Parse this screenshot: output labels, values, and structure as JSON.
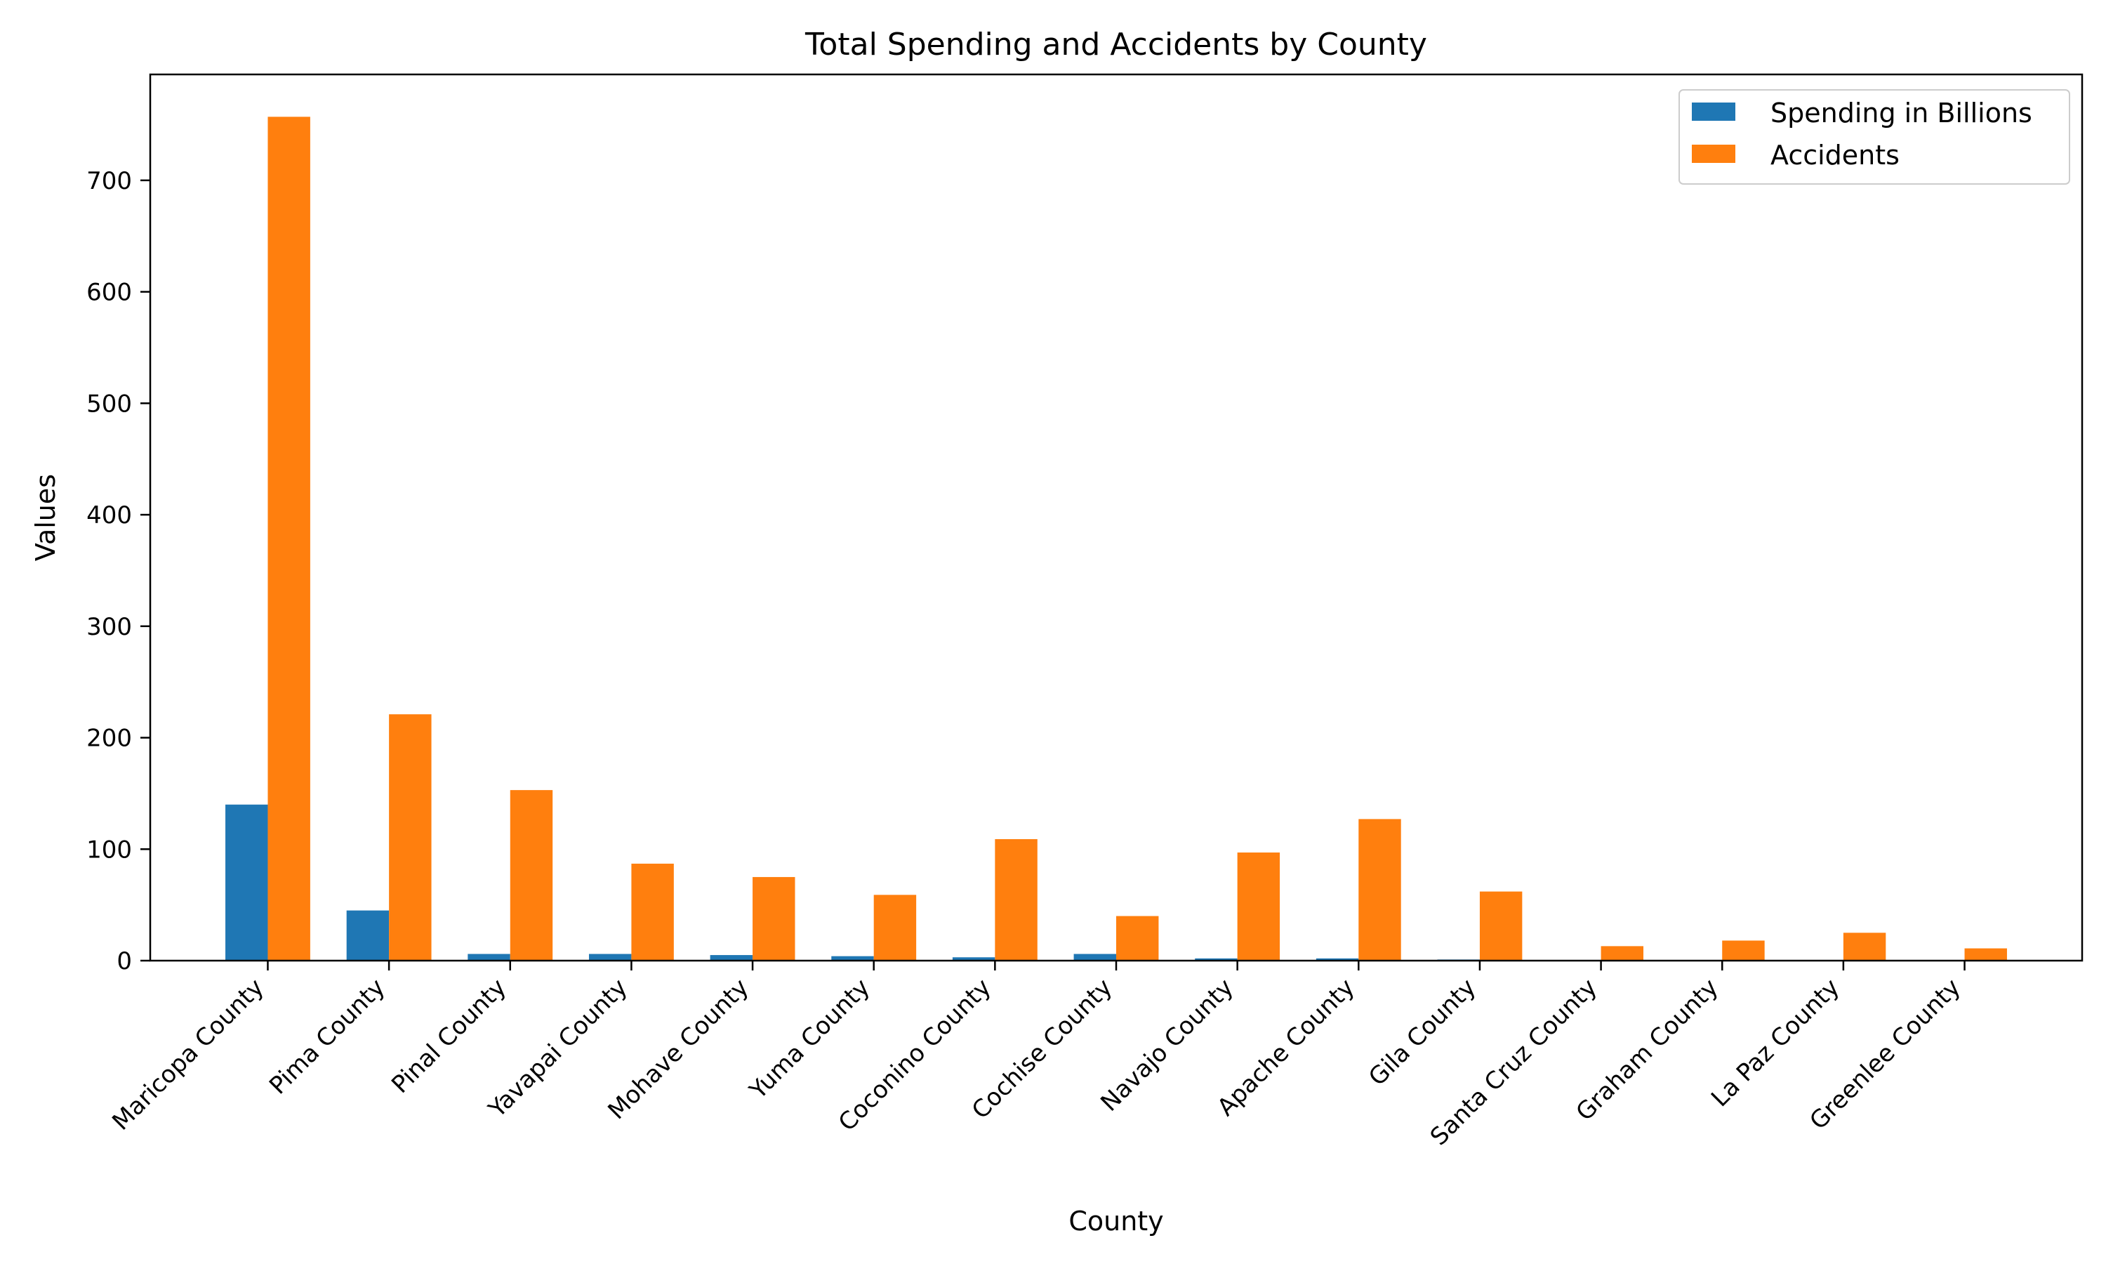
{
  "chart_data": {
    "type": "bar",
    "title": "Total Spending and Accidents by County",
    "xlabel": "County",
    "ylabel": "Values",
    "categories": [
      "Maricopa County",
      "Pima County",
      "Pinal County",
      "Yavapai County",
      "Mohave County",
      "Yuma County",
      "Coconino County",
      "Cochise County",
      "Navajo County",
      "Apache County",
      "Gila County",
      "Santa Cruz County",
      "Graham County",
      "La Paz County",
      "Greenlee County"
    ],
    "series": [
      {
        "name": "Spending in Billions",
        "color": "#1f77b4",
        "values": [
          140,
          45,
          6,
          6,
          5,
          4,
          3,
          6,
          2,
          2,
          1,
          0.5,
          0.5,
          0.5,
          0.3
        ]
      },
      {
        "name": "Accidents",
        "color": "#ff7f0e",
        "values": [
          757,
          221,
          153,
          87,
          75,
          59,
          109,
          40,
          97,
          127,
          62,
          13,
          18,
          25,
          11
        ]
      }
    ],
    "ylim": [
      0,
      795
    ],
    "yticks": [
      0,
      100,
      200,
      300,
      400,
      500,
      600,
      700
    ],
    "grid": false,
    "legend_position": "top-right"
  }
}
